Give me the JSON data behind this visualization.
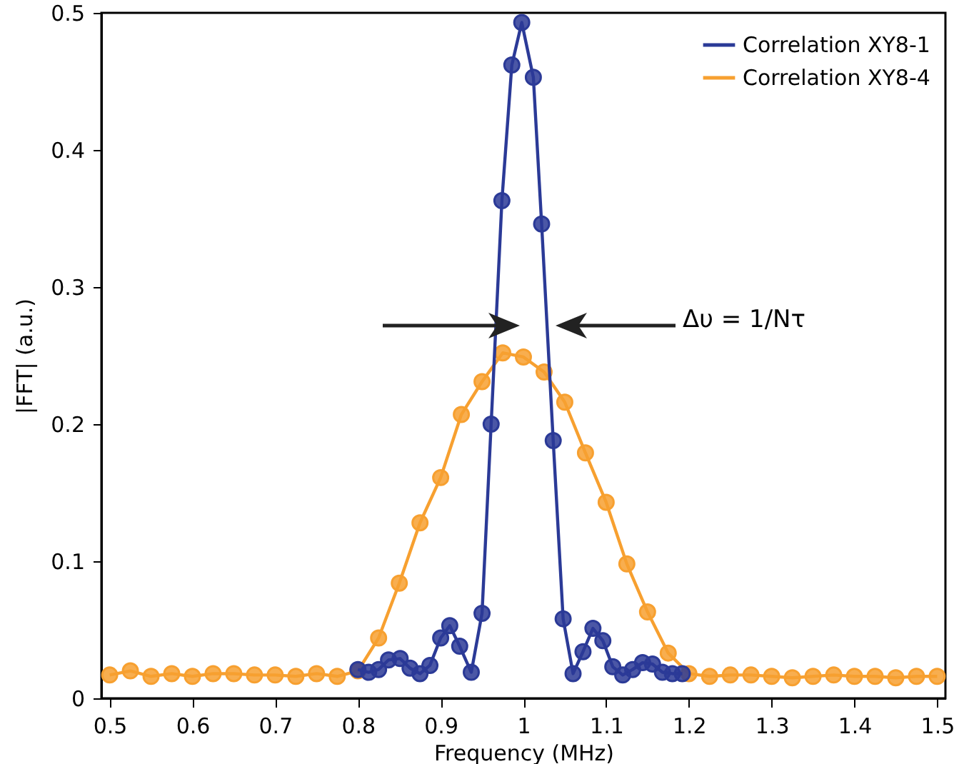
{
  "chart_data": {
    "type": "line",
    "xlabel": "Frequency (MHz)",
    "ylabel": "|FFT| (a.u.)",
    "xlim": [
      0.49,
      1.51
    ],
    "ylim": [
      0,
      0.5
    ],
    "xticks": [
      0.5,
      0.6,
      0.7,
      0.8,
      0.9,
      1,
      1.1,
      1.2,
      1.3,
      1.4,
      1.5
    ],
    "yticks": [
      0,
      0.1,
      0.2,
      0.3,
      0.4,
      0.5
    ],
    "grid": false,
    "legend": "top right",
    "marker": "circle",
    "line_style": "solid",
    "annotations": [
      "Δυ = 1/Nτ"
    ],
    "series": [
      {
        "name": "Correlation XY8-1",
        "color": "#2b3a97",
        "x": [
          0.8,
          0.813,
          0.825,
          0.837,
          0.851,
          0.863,
          0.875,
          0.887,
          0.9,
          0.911,
          0.923,
          0.937,
          0.95,
          0.961,
          0.974,
          0.986,
          0.998,
          1.012,
          1.022,
          1.036,
          1.048,
          1.06,
          1.072,
          1.084,
          1.096,
          1.108,
          1.12,
          1.132,
          1.144,
          1.156,
          1.168,
          1.18,
          1.192
        ],
        "values": [
          0.021,
          0.019,
          0.021,
          0.028,
          0.029,
          0.022,
          0.018,
          0.024,
          0.044,
          0.053,
          0.038,
          0.019,
          0.062,
          0.2,
          0.363,
          0.462,
          0.493,
          0.453,
          0.346,
          0.188,
          0.058,
          0.018,
          0.034,
          0.051,
          0.042,
          0.023,
          0.017,
          0.021,
          0.026,
          0.025,
          0.019,
          0.018,
          0.018
        ]
      },
      {
        "name": "Correlation XY8-4",
        "color": "#f7a030",
        "x": [
          0.5,
          0.525,
          0.55,
          0.575,
          0.6,
          0.625,
          0.65,
          0.675,
          0.7,
          0.725,
          0.75,
          0.775,
          0.8,
          0.825,
          0.85,
          0.875,
          0.9,
          0.925,
          0.95,
          0.975,
          1,
          1.025,
          1.05,
          1.075,
          1.1,
          1.125,
          1.15,
          1.175,
          1.2,
          1.225,
          1.25,
          1.275,
          1.3,
          1.325,
          1.35,
          1.375,
          1.4,
          1.425,
          1.45,
          1.475,
          1.5
        ],
        "values": [
          0.017,
          0.02,
          0.016,
          0.018,
          0.016,
          0.018,
          0.018,
          0.017,
          0.017,
          0.016,
          0.018,
          0.016,
          0.02,
          0.044,
          0.084,
          0.128,
          0.161,
          0.207,
          0.231,
          0.252,
          0.249,
          0.238,
          0.216,
          0.179,
          0.143,
          0.098,
          0.063,
          0.033,
          0.018,
          0.016,
          0.017,
          0.017,
          0.016,
          0.015,
          0.016,
          0.017,
          0.016,
          0.016,
          0.015,
          0.016,
          0.016
        ]
      }
    ]
  }
}
